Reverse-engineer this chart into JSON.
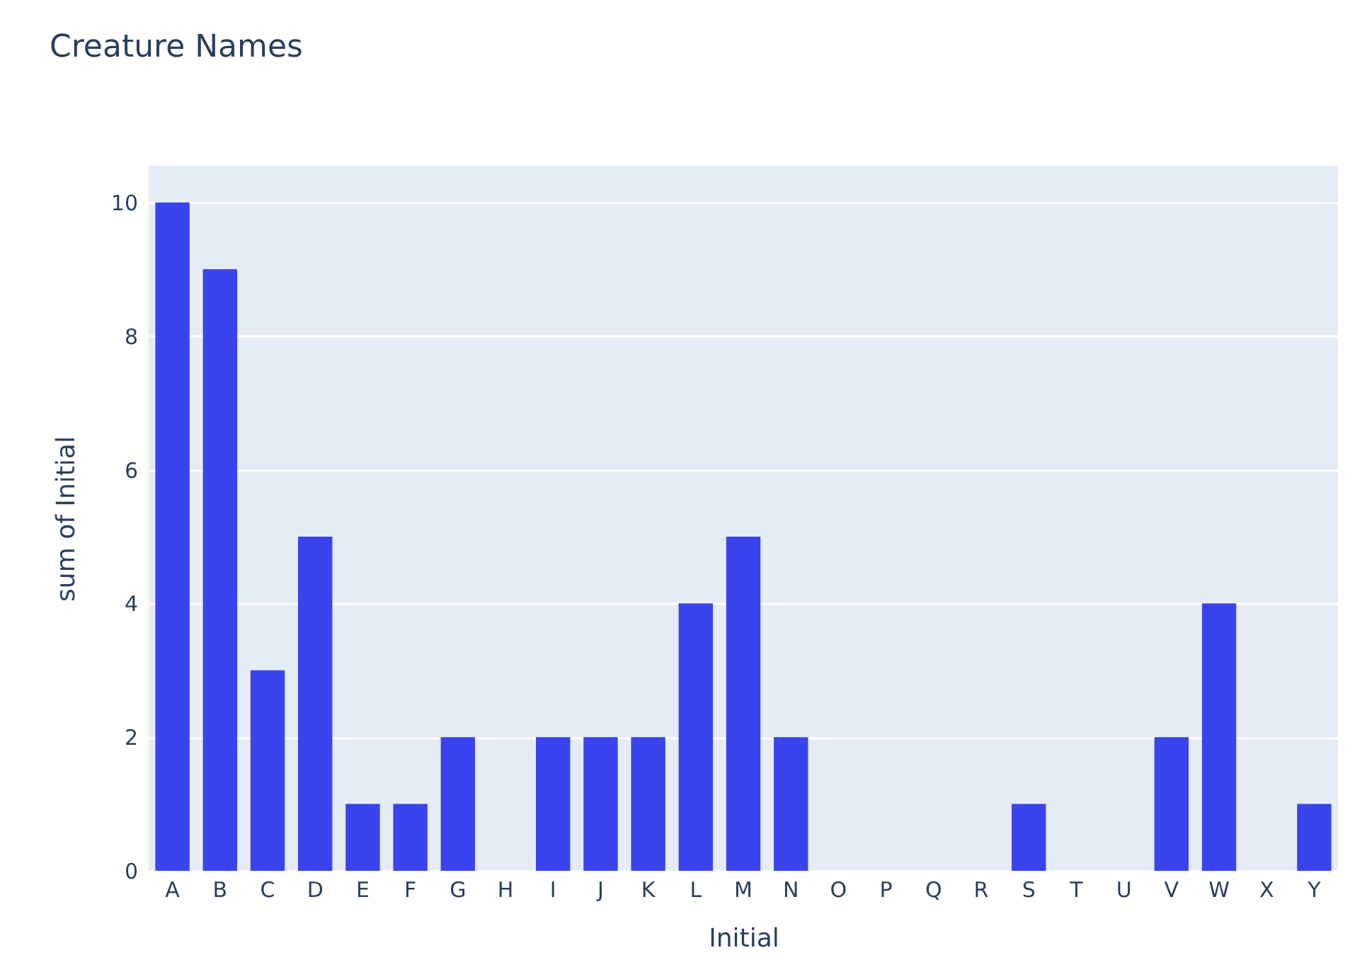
{
  "chart_data": {
    "type": "bar",
    "title": "Creature Names",
    "xlabel": "Initial",
    "ylabel": "sum of Initial",
    "categories": [
      "A",
      "B",
      "C",
      "D",
      "E",
      "F",
      "G",
      "H",
      "I",
      "J",
      "K",
      "L",
      "M",
      "N",
      "O",
      "P",
      "Q",
      "R",
      "S",
      "T",
      "U",
      "V",
      "W",
      "X",
      "Y"
    ],
    "values": [
      10,
      9,
      3,
      5,
      1,
      1,
      2,
      0,
      2,
      2,
      2,
      4,
      5,
      2,
      0,
      0,
      0,
      0,
      1,
      0,
      0,
      2,
      4,
      0,
      1
    ],
    "color": "#3a44ee",
    "ylim": [
      0,
      10.55
    ],
    "yticks": [
      0,
      2,
      4,
      6,
      8,
      10
    ],
    "grid": "y"
  }
}
